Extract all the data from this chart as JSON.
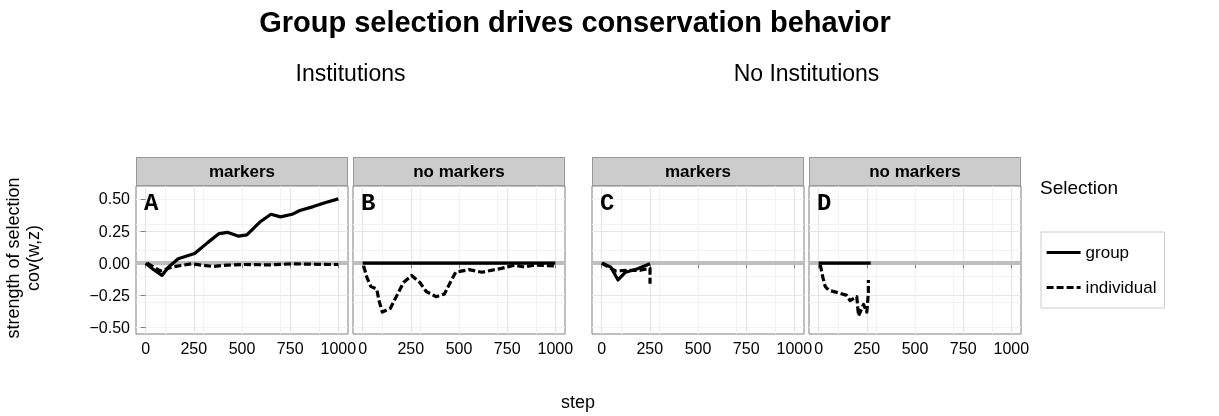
{
  "chart_data": [
    {
      "type": "line",
      "title": "markers",
      "subtitle": "Institutions",
      "annotations": [
        "Group selection drives conservation behavior",
        "A"
      ],
      "ylabel": "strength of selection\ncov(w,z)",
      "xlim": [
        -50,
        1050
      ],
      "xticks": [
        0,
        250,
        500,
        750,
        1000
      ],
      "ylim": [
        -0.55,
        0.6
      ],
      "yticks": [
        {
          "value": -0.5,
          "label": "−0.50"
        },
        {
          "value": -0.25,
          "label": "−0.25"
        },
        {
          "value": 0,
          "label": "0.00"
        },
        {
          "value": 0.25,
          "label": "0.25"
        },
        {
          "value": 0.5,
          "label": "0.50"
        }
      ],
      "grid": true,
      "marker": "none",
      "ref_lines": [
        {
          "axis": "y",
          "value": 0,
          "color": "#bebebe"
        }
      ],
      "series": [
        {
          "color": "#000000",
          "line_style": "solid",
          "x": [
            0,
            42,
            85,
            119,
            169,
            254,
            322,
            381,
            424,
            483,
            525,
            593,
            650,
            700,
            760,
            800,
            870,
            930,
            1000
          ],
          "values": [
            0,
            -0.05,
            -0.095,
            -0.03,
            0.035,
            0.075,
            0.16,
            0.23,
            0.24,
            0.21,
            0.22,
            0.32,
            0.38,
            0.36,
            0.38,
            0.41,
            0.44,
            0.47,
            0.5
          ]
        },
        {
          "color": "#000000",
          "line_style": "dashed",
          "x": [
            8,
            76,
            136,
            237,
            347,
            424,
            508,
            644,
            763,
            949,
            1000
          ],
          "values": [
            0,
            -0.06,
            -0.03,
            -0.005,
            -0.025,
            -0.015,
            -0.01,
            -0.013,
            -0.005,
            -0.01,
            -0.01
          ]
        }
      ]
    },
    {
      "type": "line",
      "title": "no markers",
      "annotations": [
        "B"
      ],
      "xlabel": "step",
      "xlim": [
        -50,
        1050
      ],
      "xticks": [
        0,
        250,
        500,
        750,
        1000
      ],
      "ylim": [
        -0.55,
        0.6
      ],
      "yticks": [
        -0.5,
        -0.25,
        0,
        0.25,
        0.5
      ],
      "grid": true,
      "marker": "none",
      "tick_labels": "x",
      "ref_lines": [
        {
          "axis": "y",
          "value": 0,
          "color": "#bebebe"
        }
      ],
      "series": [
        {
          "color": "#000000",
          "line_style": "solid",
          "x": [
            0,
            1000
          ],
          "values": [
            0,
            0
          ]
        },
        {
          "color": "#000000",
          "line_style": "dashed",
          "x": [
            5,
            22,
            42,
            73,
            85,
            102,
            144,
            178,
            212,
            254,
            297,
            330,
            381,
            424,
            458,
            483,
            551,
            619,
            720,
            788,
            839,
            890,
            992
          ],
          "values": [
            -0.02,
            -0.11,
            -0.18,
            -0.2,
            -0.29,
            -0.38,
            -0.35,
            -0.25,
            -0.15,
            -0.095,
            -0.15,
            -0.22,
            -0.26,
            -0.24,
            -0.14,
            -0.07,
            -0.05,
            -0.07,
            -0.04,
            -0.015,
            -0.03,
            -0.015,
            -0.02
          ]
        }
      ]
    },
    {
      "type": "line",
      "title": "markers",
      "subtitle": "No Institutions",
      "annotations": [
        "C"
      ],
      "xlim": [
        -50,
        1050
      ],
      "xticks": [
        0,
        250,
        500,
        750,
        1000
      ],
      "ylim": [
        -0.55,
        0.6
      ],
      "yticks": [
        -0.5,
        -0.25,
        0,
        0.25,
        0.5
      ],
      "grid": true,
      "marker": "none",
      "tick_labels": "x",
      "ref_lines": [
        {
          "axis": "y",
          "value": 0,
          "color": "#bebebe"
        }
      ],
      "series": [
        {
          "color": "#000000",
          "line_style": "solid",
          "x": [
            5,
            47,
            85,
            124,
            183,
            251
          ],
          "values": [
            0,
            -0.03,
            -0.13,
            -0.07,
            -0.045,
            -0.005
          ]
        },
        {
          "color": "#000000",
          "line_style": "dashed",
          "x": [
            0,
            73,
            149,
            200,
            251,
            251
          ],
          "values": [
            0,
            -0.06,
            -0.055,
            -0.055,
            -0.04,
            -0.16
          ]
        }
      ]
    },
    {
      "type": "line",
      "title": "no markers",
      "annotations": [
        "D"
      ],
      "legend_title": "Selection",
      "xlim": [
        -50,
        1050
      ],
      "xticks": [
        0,
        250,
        500,
        750,
        1000
      ],
      "ylim": [
        -0.55,
        0.6
      ],
      "yticks": [
        -0.5,
        -0.25,
        0,
        0.25,
        0.5
      ],
      "grid": true,
      "legend": "right",
      "marker": "none",
      "tick_labels": "x",
      "ref_lines": [
        {
          "axis": "y",
          "value": 0,
          "color": "#bebebe"
        }
      ],
      "series": [
        {
          "name": "group",
          "color": "#000000",
          "line_style": "solid",
          "x": [
            0,
            270
          ],
          "values": [
            0,
            0
          ]
        },
        {
          "name": "individual",
          "color": "#000000",
          "line_style": "dashed",
          "x": [
            8,
            22,
            34,
            52,
            103,
            146,
            163,
            198,
            207,
            233,
            250,
            258,
            258
          ],
          "values": [
            -0.01,
            -0.11,
            -0.18,
            -0.21,
            -0.23,
            -0.25,
            -0.29,
            -0.26,
            -0.41,
            -0.32,
            -0.38,
            -0.23,
            -0.13
          ]
        }
      ]
    }
  ]
}
